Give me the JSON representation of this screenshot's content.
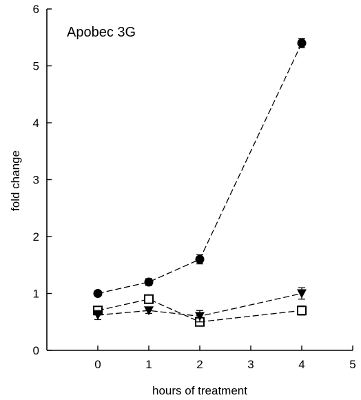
{
  "chart_data": {
    "type": "line",
    "title": "Apobec 3G",
    "xlabel": "hours of treatment",
    "ylabel": "fold change",
    "xlim": [
      -1,
      5
    ],
    "ylim": [
      0,
      6
    ],
    "xticks": [
      0,
      1,
      2,
      3,
      4,
      5
    ],
    "yticks": [
      0,
      1,
      2,
      3,
      4,
      5,
      6
    ],
    "grid": false,
    "series": [
      {
        "marker": "filled-circle",
        "x": [
          0,
          1,
          2,
          4
        ],
        "y": [
          1.0,
          1.2,
          1.6,
          5.4
        ],
        "err": [
          0.03,
          0.06,
          0.08,
          0.08
        ]
      },
      {
        "marker": "open-square",
        "x": [
          0,
          1,
          2,
          4
        ],
        "y": [
          0.7,
          0.9,
          0.5,
          0.7
        ],
        "err": [
          0.05,
          0.07,
          0.07,
          0.08
        ]
      },
      {
        "marker": "filled-triangle-down",
        "x": [
          0,
          1,
          2,
          4
        ],
        "y": [
          0.62,
          0.7,
          0.6,
          1.0
        ],
        "err": [
          0.08,
          0.05,
          0.1,
          0.1
        ]
      }
    ]
  }
}
